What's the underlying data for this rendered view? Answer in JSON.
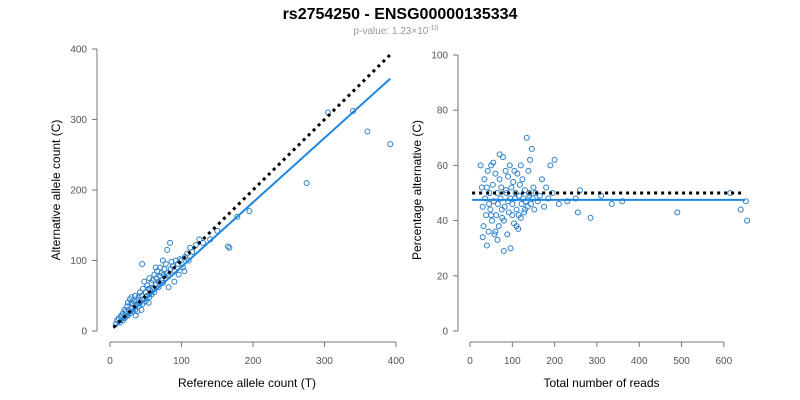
{
  "figure": {
    "title": "rs2754250 - ENSG00000135334",
    "subtitle_prefix": "p-value: 1.23×10",
    "subtitle_exponent": "-10"
  },
  "chart_data": [
    {
      "type": "scatter",
      "xlabel": "Reference allele count (T)",
      "ylabel": "Alternative allele count (C)",
      "xlim": [
        0,
        400
      ],
      "ylim": [
        0,
        400
      ],
      "xticks": [
        0,
        100,
        200,
        300,
        400
      ],
      "yticks": [
        0,
        100,
        200,
        300,
        400
      ],
      "fit_line": {
        "x": [
          5,
          392
        ],
        "y": [
          4,
          358
        ]
      },
      "reference_line": {
        "x": [
          5,
          392
        ],
        "y": [
          5,
          392
        ]
      },
      "points": [
        [
          8,
          10
        ],
        [
          10,
          15
        ],
        [
          12,
          18
        ],
        [
          14,
          12
        ],
        [
          15,
          20
        ],
        [
          16,
          22
        ],
        [
          18,
          25
        ],
        [
          18,
          15
        ],
        [
          20,
          30
        ],
        [
          20,
          18
        ],
        [
          22,
          28
        ],
        [
          22,
          20
        ],
        [
          24,
          35
        ],
        [
          25,
          22
        ],
        [
          25,
          40
        ],
        [
          26,
          30
        ],
        [
          28,
          25
        ],
        [
          28,
          45
        ],
        [
          30,
          32
        ],
        [
          30,
          48
        ],
        [
          32,
          28
        ],
        [
          32,
          38
        ],
        [
          34,
          42
        ],
        [
          35,
          30
        ],
        [
          35,
          50
        ],
        [
          36,
          36
        ],
        [
          38,
          44
        ],
        [
          38,
          28
        ],
        [
          40,
          48
        ],
        [
          40,
          35
        ],
        [
          42,
          55
        ],
        [
          42,
          40
        ],
        [
          44,
          50
        ],
        [
          45,
          38
        ],
        [
          45,
          95
        ],
        [
          46,
          60
        ],
        [
          48,
          45
        ],
        [
          48,
          70
        ],
        [
          50,
          55
        ],
        [
          50,
          42
        ],
        [
          52,
          65
        ],
        [
          52,
          50
        ],
        [
          54,
          60
        ],
        [
          55,
          48
        ],
        [
          55,
          75
        ],
        [
          56,
          58
        ],
        [
          58,
          68
        ],
        [
          58,
          52
        ],
        [
          60,
          72
        ],
        [
          60,
          60
        ],
        [
          62,
          80
        ],
        [
          62,
          55
        ],
        [
          64,
          66
        ],
        [
          65,
          75
        ],
        [
          66,
          85
        ],
        [
          68,
          70
        ],
        [
          68,
          62
        ],
        [
          70,
          78
        ],
        [
          70,
          90
        ],
        [
          72,
          72
        ],
        [
          72,
          82
        ],
        [
          74,
          68
        ],
        [
          75,
          80
        ],
        [
          76,
          88
        ],
        [
          78,
          75
        ],
        [
          78,
          95
        ],
        [
          80,
          82
        ],
        [
          80,
          115
        ],
        [
          82,
          78
        ],
        [
          84,
          125
        ],
        [
          85,
          88
        ],
        [
          86,
          98
        ],
        [
          88,
          92
        ],
        [
          90,
          85
        ],
        [
          92,
          100
        ],
        [
          95,
          95
        ],
        [
          98,
          102
        ],
        [
          100,
          100
        ],
        [
          102,
          90
        ],
        [
          105,
          105
        ],
        [
          108,
          110
        ],
        [
          110,
          100
        ],
        [
          112,
          118
        ],
        [
          115,
          112
        ],
        [
          120,
          122
        ],
        [
          125,
          130
        ],
        [
          130,
          125
        ],
        [
          140,
          130
        ],
        [
          150,
          142
        ],
        [
          165,
          120
        ],
        [
          167,
          118
        ],
        [
          178,
          162
        ],
        [
          195,
          170
        ],
        [
          275,
          210
        ],
        [
          305,
          310
        ],
        [
          340,
          312
        ],
        [
          360,
          283
        ],
        [
          392,
          265
        ],
        [
          30,
          40
        ],
        [
          36,
          22
        ],
        [
          44,
          30
        ],
        [
          54,
          40
        ],
        [
          64,
          90
        ],
        [
          74,
          100
        ],
        [
          82,
          62
        ],
        [
          90,
          70
        ],
        [
          96,
          80
        ],
        [
          104,
          85
        ]
      ]
    },
    {
      "type": "scatter",
      "xlabel": "Total number of reads",
      "ylabel": "Percentage alternative (C)",
      "xlim": [
        0,
        650
      ],
      "ylim": [
        0,
        100
      ],
      "xticks": [
        0,
        100,
        200,
        300,
        400,
        500,
        600
      ],
      "yticks": [
        0,
        20,
        40,
        60,
        80,
        100
      ],
      "fit_line": {
        "x": [
          5,
          650
        ],
        "y": [
          47.5,
          47.5
        ]
      },
      "reference_line": {
        "x": [
          5,
          650
        ],
        "y": [
          50,
          50
        ]
      },
      "points": [
        [
          25,
          60
        ],
        [
          28,
          52
        ],
        [
          30,
          45
        ],
        [
          32,
          38
        ],
        [
          34,
          55
        ],
        [
          36,
          48
        ],
        [
          38,
          42
        ],
        [
          40,
          31
        ],
        [
          42,
          58
        ],
        [
          44,
          36
        ],
        [
          46,
          50
        ],
        [
          48,
          44
        ],
        [
          50,
          60
        ],
        [
          52,
          40
        ],
        [
          54,
          53
        ],
        [
          56,
          47
        ],
        [
          58,
          35
        ],
        [
          60,
          57
        ],
        [
          62,
          42
        ],
        [
          64,
          50
        ],
        [
          66,
          46
        ],
        [
          68,
          38
        ],
        [
          70,
          55
        ],
        [
          72,
          48
        ],
        [
          74,
          52
        ],
        [
          76,
          41
        ],
        [
          78,
          63
        ],
        [
          80,
          29
        ],
        [
          82,
          45
        ],
        [
          84,
          58
        ],
        [
          86,
          50
        ],
        [
          88,
          35
        ],
        [
          90,
          47
        ],
        [
          92,
          43
        ],
        [
          94,
          60
        ],
        [
          96,
          30
        ],
        [
          98,
          52
        ],
        [
          100,
          46
        ],
        [
          102,
          54
        ],
        [
          104,
          39
        ],
        [
          106,
          48
        ],
        [
          108,
          50
        ],
        [
          110,
          44
        ],
        [
          112,
          57
        ],
        [
          114,
          37
        ],
        [
          116,
          49
        ],
        [
          118,
          53
        ],
        [
          120,
          41
        ],
        [
          122,
          46
        ],
        [
          124,
          55
        ],
        [
          126,
          48
        ],
        [
          128,
          43
        ],
        [
          130,
          51
        ],
        [
          132,
          47
        ],
        [
          134,
          70
        ],
        [
          136,
          45
        ],
        [
          138,
          58
        ],
        [
          140,
          50
        ],
        [
          142,
          62
        ],
        [
          144,
          46
        ],
        [
          146,
          66
        ],
        [
          148,
          48
        ],
        [
          150,
          52
        ],
        [
          152,
          44
        ],
        [
          155,
          50
        ],
        [
          160,
          47
        ],
        [
          165,
          49
        ],
        [
          170,
          55
        ],
        [
          175,
          45
        ],
        [
          180,
          52
        ],
        [
          185,
          48
        ],
        [
          190,
          60
        ],
        [
          195,
          50
        ],
        [
          200,
          62
        ],
        [
          210,
          46
        ],
        [
          230,
          47
        ],
        [
          250,
          48
        ],
        [
          255,
          43
        ],
        [
          260,
          51
        ],
        [
          285,
          41
        ],
        [
          310,
          49
        ],
        [
          335,
          46
        ],
        [
          360,
          47
        ],
        [
          490,
          43
        ],
        [
          615,
          50
        ],
        [
          640,
          44
        ],
        [
          652,
          47
        ],
        [
          655,
          40
        ],
        [
          30,
          34
        ],
        [
          40,
          52
        ],
        [
          50,
          42
        ],
        [
          60,
          36
        ],
        [
          70,
          64
        ],
        [
          80,
          40
        ],
        [
          90,
          56
        ],
        [
          100,
          42
        ],
        [
          110,
          38
        ],
        [
          120,
          60
        ],
        [
          130,
          44
        ],
        [
          140,
          49
        ],
        [
          45,
          46
        ],
        [
          55,
          61
        ],
        [
          65,
          33
        ],
        [
          75,
          44
        ],
        [
          85,
          51
        ],
        [
          95,
          48
        ],
        [
          105,
          58
        ],
        [
          115,
          42
        ]
      ]
    }
  ]
}
